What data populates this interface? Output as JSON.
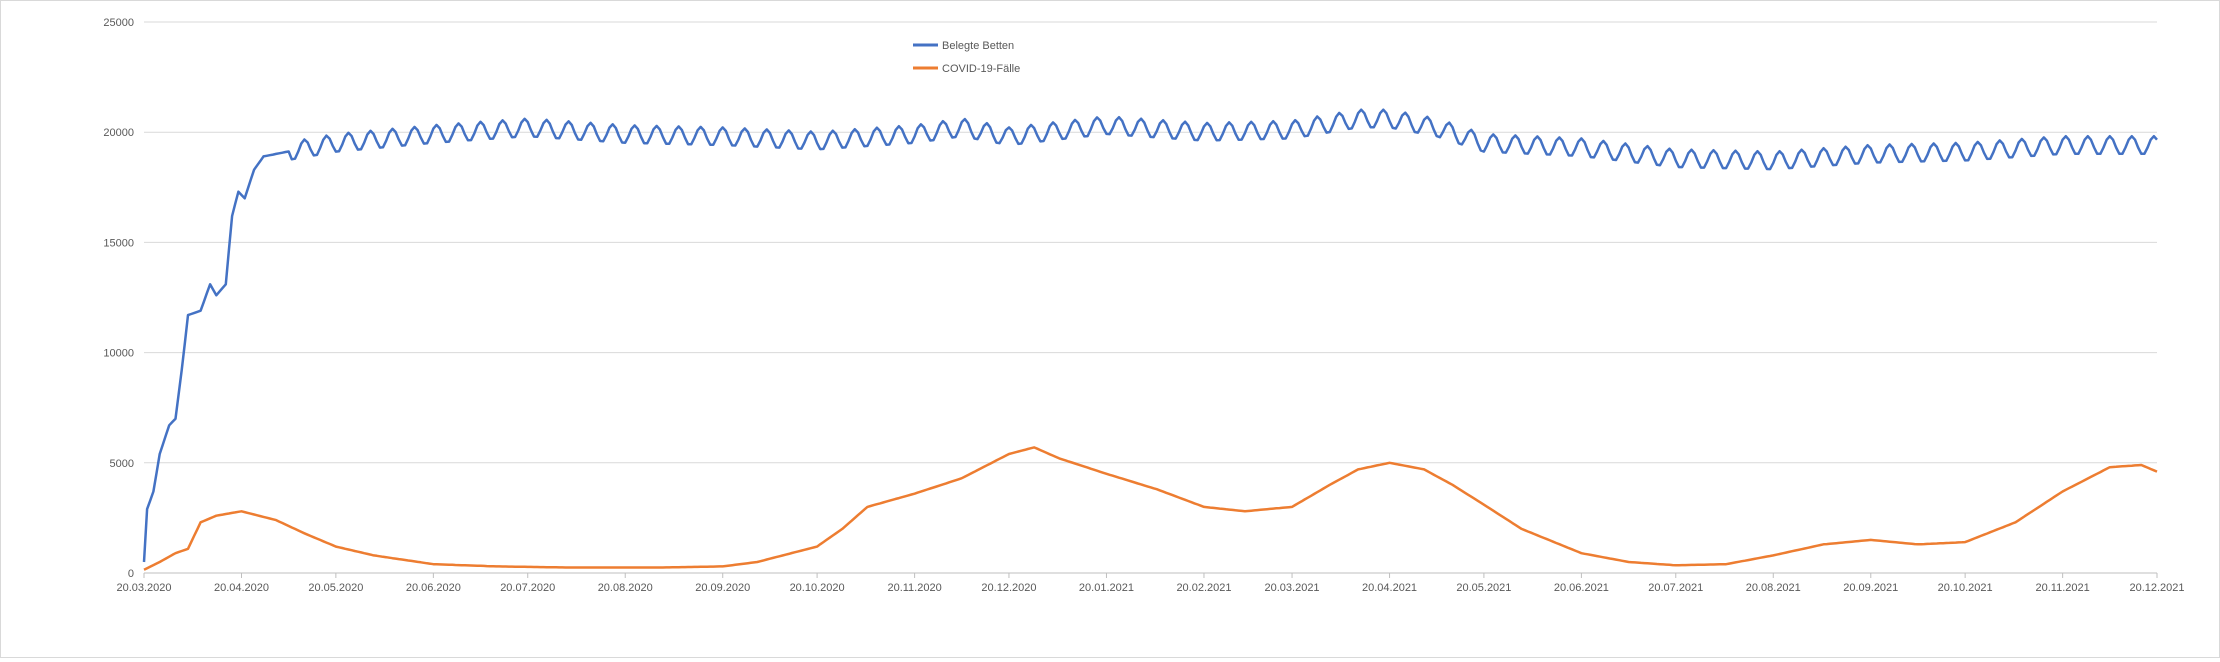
{
  "chart_data": {
    "type": "line",
    "title": "",
    "xlabel": "",
    "ylabel": "",
    "ylim": [
      0,
      25000
    ],
    "y_ticks": [
      0,
      5000,
      10000,
      15000,
      20000,
      25000
    ],
    "y_tick_labels": [
      "0",
      "5000",
      "10000",
      "15000",
      "20000",
      "25000"
    ],
    "x_range": [
      "2020-03-20",
      "2021-12-20"
    ],
    "x_tick_labels": [
      "20.03.2020",
      "20.04.2020",
      "20.05.2020",
      "20.06.2020",
      "20.07.2020",
      "20.08.2020",
      "20.09.2020",
      "20.10.2020",
      "20.11.2020",
      "20.12.2020",
      "20.01.2021",
      "20.02.2021",
      "20.03.2021",
      "20.04.2021",
      "20.05.2021",
      "20.06.2021",
      "20.07.2021",
      "20.08.2021",
      "20.09.2021",
      "20.10.2021",
      "20.11.2021",
      "20.12.2021"
    ],
    "grid": true,
    "legend_position": "top-center",
    "series": [
      {
        "name": "Belegte Betten",
        "color": "#4472c4",
        "weekly_oscillation": true,
        "points": [
          [
            "2020-03-20",
            500
          ],
          [
            "2020-03-21",
            2900
          ],
          [
            "2020-03-23",
            3700
          ],
          [
            "2020-03-25",
            5400
          ],
          [
            "2020-03-28",
            6700
          ],
          [
            "2020-03-30",
            7000
          ],
          [
            "2020-04-01",
            9200
          ],
          [
            "2020-04-03",
            11700
          ],
          [
            "2020-04-07",
            11900
          ],
          [
            "2020-04-10",
            13100
          ],
          [
            "2020-04-12",
            12600
          ],
          [
            "2020-04-15",
            13100
          ],
          [
            "2020-04-17",
            16200
          ],
          [
            "2020-04-19",
            17300
          ],
          [
            "2020-04-21",
            17000
          ],
          [
            "2020-04-24",
            18300
          ],
          [
            "2020-04-27",
            18900
          ],
          [
            "2020-05-04",
            19100
          ],
          [
            "2020-05-20",
            19500
          ],
          [
            "2020-06-20",
            19900
          ],
          [
            "2020-07-20",
            20200
          ],
          [
            "2020-08-20",
            19900
          ],
          [
            "2020-09-20",
            19800
          ],
          [
            "2020-10-20",
            19600
          ],
          [
            "2020-11-20",
            19900
          ],
          [
            "2020-12-05",
            20200
          ],
          [
            "2020-12-20",
            19800
          ],
          [
            "2021-01-20",
            20300
          ],
          [
            "2021-02-20",
            20000
          ],
          [
            "2021-03-20",
            20100
          ],
          [
            "2021-04-10",
            20600
          ],
          [
            "2021-04-20",
            20600
          ],
          [
            "2021-05-05",
            20200
          ],
          [
            "2021-05-20",
            19500
          ],
          [
            "2021-06-20",
            19300
          ],
          [
            "2021-07-20",
            18800
          ],
          [
            "2021-08-20",
            18700
          ],
          [
            "2021-09-20",
            19000
          ],
          [
            "2021-10-20",
            19100
          ],
          [
            "2021-11-20",
            19400
          ],
          [
            "2021-12-20",
            19400
          ]
        ]
      },
      {
        "name": "COVID-19-Fälle",
        "color": "#ed7d31",
        "weekly_oscillation": false,
        "points": [
          [
            "2020-03-20",
            150
          ],
          [
            "2020-03-25",
            500
          ],
          [
            "2020-03-30",
            900
          ],
          [
            "2020-04-03",
            1100
          ],
          [
            "2020-04-07",
            2300
          ],
          [
            "2020-04-12",
            2600
          ],
          [
            "2020-04-20",
            2800
          ],
          [
            "2020-05-01",
            2400
          ],
          [
            "2020-05-10",
            1800
          ],
          [
            "2020-05-20",
            1200
          ],
          [
            "2020-06-01",
            800
          ],
          [
            "2020-06-20",
            400
          ],
          [
            "2020-07-10",
            300
          ],
          [
            "2020-08-01",
            250
          ],
          [
            "2020-09-01",
            250
          ],
          [
            "2020-09-20",
            300
          ],
          [
            "2020-10-01",
            500
          ],
          [
            "2020-10-20",
            1200
          ],
          [
            "2020-10-28",
            2000
          ],
          [
            "2020-11-05",
            3000
          ],
          [
            "2020-11-20",
            3600
          ],
          [
            "2020-12-05",
            4300
          ],
          [
            "2020-12-20",
            5400
          ],
          [
            "2020-12-28",
            5700
          ],
          [
            "2021-01-05",
            5200
          ],
          [
            "2021-01-20",
            4500
          ],
          [
            "2021-02-05",
            3800
          ],
          [
            "2021-02-20",
            3000
          ],
          [
            "2021-03-05",
            2800
          ],
          [
            "2021-03-20",
            3000
          ],
          [
            "2021-04-01",
            4000
          ],
          [
            "2021-04-10",
            4700
          ],
          [
            "2021-04-20",
            5000
          ],
          [
            "2021-05-01",
            4700
          ],
          [
            "2021-05-10",
            4000
          ],
          [
            "2021-05-20",
            3100
          ],
          [
            "2021-06-01",
            2000
          ],
          [
            "2021-06-20",
            900
          ],
          [
            "2021-07-05",
            500
          ],
          [
            "2021-07-20",
            350
          ],
          [
            "2021-08-05",
            400
          ],
          [
            "2021-08-20",
            800
          ],
          [
            "2021-09-05",
            1300
          ],
          [
            "2021-09-20",
            1500
          ],
          [
            "2021-10-05",
            1300
          ],
          [
            "2021-10-20",
            1400
          ],
          [
            "2021-11-05",
            2300
          ],
          [
            "2021-11-20",
            3700
          ],
          [
            "2021-12-05",
            4800
          ],
          [
            "2021-12-15",
            4900
          ],
          [
            "2021-12-20",
            4600
          ]
        ]
      }
    ]
  }
}
